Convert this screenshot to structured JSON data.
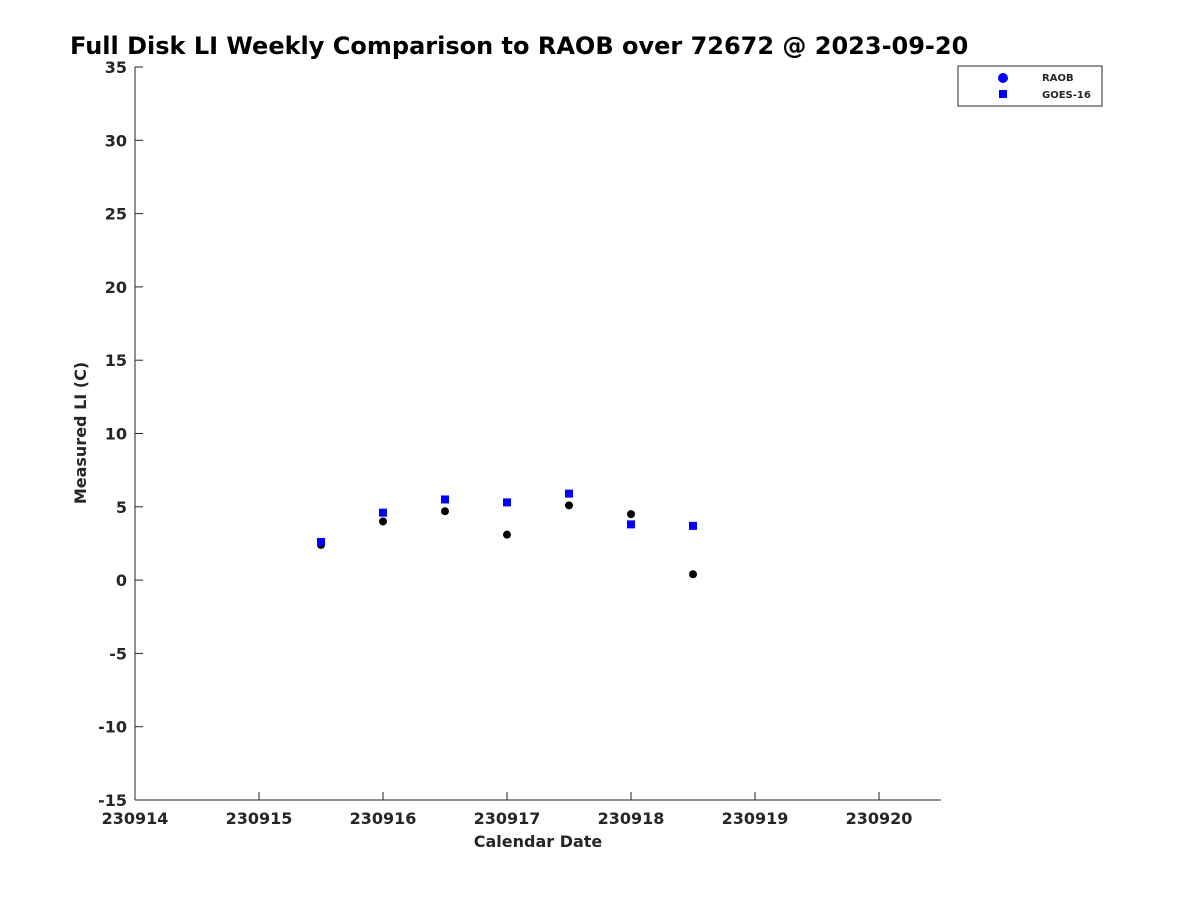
{
  "chart_data": {
    "type": "scatter",
    "title": "Full Disk LI Weekly Comparison to RAOB over 72672 @ 2023-09-20",
    "xlabel": "Calendar Date",
    "ylabel": "Measured LI (C)",
    "xlim": [
      230914,
      230920.5
    ],
    "ylim": [
      -15,
      35
    ],
    "xticks": [
      230914,
      230915,
      230916,
      230917,
      230918,
      230919,
      230920
    ],
    "yticks": [
      -15,
      -10,
      -5,
      0,
      5,
      10,
      15,
      20,
      25,
      30,
      35
    ],
    "grid": false,
    "legend_position": "top-right",
    "series": [
      {
        "name": "RAOB",
        "marker": "circle",
        "color": "#000000",
        "legend_color": "#0000ff",
        "x": [
          230915.5,
          230916,
          230916.5,
          230917,
          230917.5,
          230918,
          230918.5
        ],
        "y": [
          2.4,
          4.0,
          4.7,
          3.1,
          5.1,
          4.5,
          0.4
        ]
      },
      {
        "name": "GOES-16",
        "marker": "square",
        "color": "#0000ff",
        "legend_color": "#0000ff",
        "x": [
          230915.5,
          230916,
          230916.5,
          230917,
          230917.5,
          230918,
          230918.5
        ],
        "y": [
          2.6,
          4.6,
          5.5,
          5.3,
          5.9,
          3.8,
          3.7
        ]
      }
    ]
  }
}
